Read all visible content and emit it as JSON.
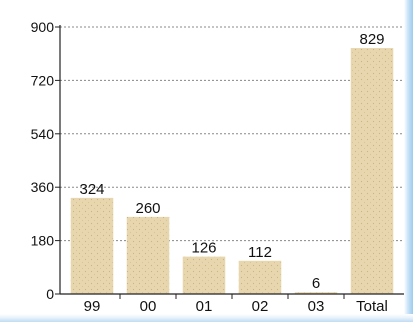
{
  "chart_data": {
    "type": "bar",
    "title": "",
    "xlabel": "",
    "ylabel": "",
    "categories": [
      "99",
      "00",
      "01",
      "02",
      "03",
      "Total"
    ],
    "values": [
      324,
      260,
      126,
      112,
      6,
      829
    ],
    "data_labels": [
      "324",
      "260",
      "126",
      "112",
      "6",
      "829"
    ],
    "ylim": [
      0,
      900
    ],
    "yticks": [
      0,
      180,
      360,
      540,
      720,
      900
    ],
    "ytick_labels": [
      "0",
      "180",
      "360",
      "540",
      "720",
      "900"
    ],
    "grid": true,
    "legend": "none",
    "bar_color": "#e8d6ae",
    "grid_color": "#888888"
  }
}
